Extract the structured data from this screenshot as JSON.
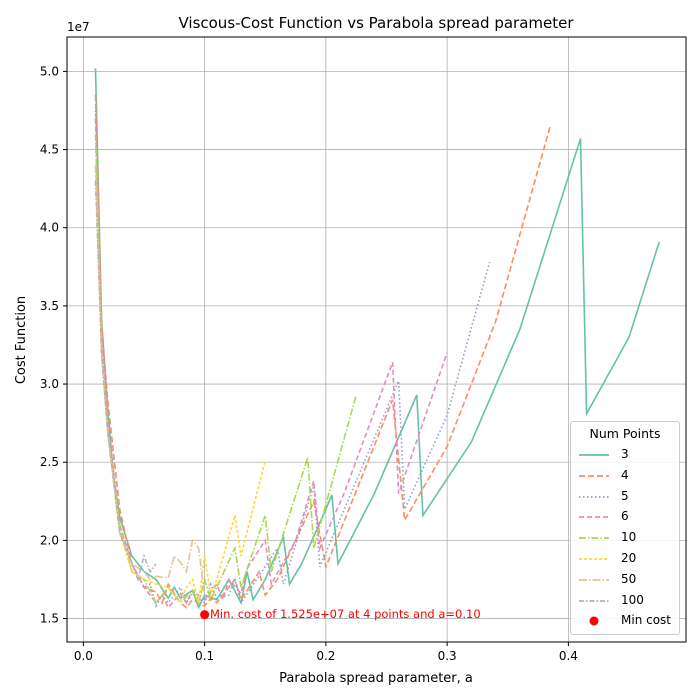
{
  "chart_data": {
    "type": "line",
    "title": "Viscous-Cost Function vs Parabola spread parameter",
    "xlabel": "Parabola spread parameter, a",
    "ylabel": "Cost Function",
    "y_offset_label": "1e7",
    "xlim": [
      -0.0135,
      0.497
    ],
    "ylim": [
      1.35,
      5.22
    ],
    "xticks": [
      0.0,
      0.1,
      0.2,
      0.3,
      0.4
    ],
    "xtick_labels": [
      "0.0",
      "0.1",
      "0.2",
      "0.3",
      "0.4"
    ],
    "yticks": [
      1.5,
      2.0,
      2.5,
      3.0,
      3.5,
      4.0,
      4.5,
      5.0
    ],
    "ytick_labels": [
      "1.5",
      "2.0",
      "2.5",
      "3.0",
      "3.5",
      "4.0",
      "4.5",
      "5.0"
    ],
    "grid": true,
    "legend_title": "Num Points",
    "legend_position": "lower-right",
    "series": [
      {
        "name": "3",
        "color": "#66c2a5",
        "dash": "",
        "width": 1.6,
        "x": [
          0.01,
          0.015,
          0.02,
          0.025,
          0.03,
          0.04,
          0.05,
          0.06,
          0.07,
          0.075,
          0.08,
          0.09,
          0.095,
          0.1,
          0.11,
          0.12,
          0.13,
          0.135,
          0.14,
          0.15,
          0.165,
          0.17,
          0.18,
          0.2,
          0.205,
          0.21,
          0.24,
          0.275,
          0.28,
          0.32,
          0.36,
          0.41,
          0.415,
          0.45,
          0.475
        ],
        "y": [
          5.02,
          3.4,
          2.85,
          2.4,
          2.15,
          1.9,
          1.8,
          1.75,
          1.63,
          1.7,
          1.63,
          1.68,
          1.57,
          1.65,
          1.62,
          1.75,
          1.6,
          1.8,
          1.62,
          1.75,
          2.02,
          1.72,
          1.85,
          2.2,
          2.29,
          1.85,
          2.3,
          2.93,
          2.16,
          2.63,
          3.35,
          4.57,
          2.81,
          3.3,
          3.91
        ]
      },
      {
        "name": "4",
        "color": "#fc8d62",
        "dash": "6,3",
        "width": 1.6,
        "x": [
          0.01,
          0.015,
          0.02,
          0.03,
          0.04,
          0.05,
          0.06,
          0.065,
          0.07,
          0.08,
          0.085,
          0.09,
          0.1,
          0.105,
          0.11,
          0.125,
          0.13,
          0.145,
          0.15,
          0.16,
          0.19,
          0.2,
          0.255,
          0.265,
          0.3,
          0.34,
          0.385
        ],
        "y": [
          4.85,
          3.4,
          2.9,
          2.2,
          1.85,
          1.7,
          1.67,
          1.6,
          1.72,
          1.6,
          1.57,
          1.62,
          1.58,
          1.63,
          1.6,
          1.75,
          1.62,
          1.8,
          1.65,
          1.75,
          2.25,
          1.83,
          2.9,
          2.13,
          2.6,
          3.4,
          4.65
        ]
      },
      {
        "name": "5",
        "color": "#8da0cb",
        "dash": "1.5,2.5",
        "width": 1.6,
        "x": [
          0.01,
          0.015,
          0.02,
          0.03,
          0.04,
          0.05,
          0.055,
          0.06,
          0.065,
          0.07,
          0.08,
          0.085,
          0.09,
          0.1,
          0.105,
          0.11,
          0.12,
          0.125,
          0.13,
          0.16,
          0.165,
          0.19,
          0.195,
          0.26,
          0.265,
          0.3,
          0.335
        ],
        "y": [
          4.75,
          3.3,
          2.8,
          2.1,
          1.85,
          1.7,
          1.72,
          1.58,
          1.65,
          1.6,
          1.7,
          1.6,
          1.66,
          1.6,
          1.72,
          1.63,
          1.65,
          1.75,
          1.6,
          1.95,
          1.72,
          2.35,
          1.83,
          3.02,
          2.2,
          2.8,
          3.78
        ]
      },
      {
        "name": "6",
        "color": "#e78ac3",
        "dash": "5,3",
        "width": 1.6,
        "x": [
          0.01,
          0.015,
          0.02,
          0.03,
          0.04,
          0.05,
          0.06,
          0.065,
          0.07,
          0.08,
          0.085,
          0.09,
          0.1,
          0.11,
          0.115,
          0.12,
          0.13,
          0.135,
          0.15,
          0.155,
          0.175,
          0.19,
          0.195,
          0.215,
          0.255,
          0.26,
          0.3
        ],
        "y": [
          4.7,
          3.3,
          2.75,
          2.1,
          1.85,
          1.7,
          1.6,
          1.65,
          1.57,
          1.66,
          1.6,
          1.68,
          1.62,
          1.72,
          1.62,
          1.75,
          1.66,
          1.82,
          2.0,
          1.72,
          2.0,
          2.38,
          1.95,
          2.3,
          3.14,
          2.3,
          3.2
        ]
      },
      {
        "name": "10",
        "color": "#a6d854",
        "dash": "7,2,1.5,2",
        "width": 1.6,
        "x": [
          0.01,
          0.015,
          0.02,
          0.03,
          0.04,
          0.05,
          0.06,
          0.07,
          0.075,
          0.08,
          0.09,
          0.095,
          0.1,
          0.105,
          0.11,
          0.125,
          0.13,
          0.15,
          0.155,
          0.185,
          0.19,
          0.225
        ],
        "y": [
          4.6,
          3.2,
          2.7,
          2.1,
          1.8,
          1.75,
          1.6,
          1.7,
          1.65,
          1.6,
          1.68,
          1.6,
          1.75,
          1.62,
          1.7,
          1.95,
          1.7,
          2.16,
          1.8,
          2.53,
          1.95,
          2.93
        ]
      },
      {
        "name": "20",
        "color": "#ffd92f",
        "dash": "3,2",
        "width": 1.6,
        "x": [
          0.01,
          0.015,
          0.02,
          0.03,
          0.04,
          0.05,
          0.06,
          0.07,
          0.075,
          0.08,
          0.085,
          0.09,
          0.095,
          0.1,
          0.105,
          0.11,
          0.125,
          0.13,
          0.15
        ],
        "y": [
          4.4,
          3.2,
          2.7,
          2.05,
          1.8,
          1.75,
          1.72,
          1.7,
          1.65,
          1.6,
          1.7,
          1.75,
          1.6,
          1.9,
          1.65,
          1.75,
          2.16,
          1.9,
          2.51
        ]
      },
      {
        "name": "50",
        "color": "#e5c494",
        "dash": "8,2,1.5,2",
        "width": 1.6,
        "x": [
          0.01,
          0.015,
          0.02,
          0.03,
          0.04,
          0.05,
          0.055,
          0.06,
          0.07,
          0.075,
          0.08,
          0.085,
          0.09,
          0.095,
          0.1
        ],
        "y": [
          4.4,
          3.2,
          2.7,
          2.05,
          1.85,
          1.8,
          1.75,
          1.77,
          1.76,
          1.9,
          1.86,
          1.8,
          2.0,
          1.95,
          1.65
        ]
      },
      {
        "name": "100",
        "color": "#b3b3b3",
        "dash": "5,2,1.5,2",
        "width": 1.6,
        "x": [
          0.01,
          0.015,
          0.02,
          0.03,
          0.04,
          0.045,
          0.05,
          0.055,
          0.06
        ],
        "y": [
          4.3,
          3.2,
          2.7,
          2.05,
          1.85,
          1.75,
          1.9,
          1.8,
          1.85
        ]
      }
    ],
    "min_point": {
      "label": "Min cost",
      "x": 0.1,
      "y": 1.525,
      "color": "#ff0000",
      "annotation": "Min. cost of 1.525e+07 at 4 points and a=0.10"
    }
  }
}
